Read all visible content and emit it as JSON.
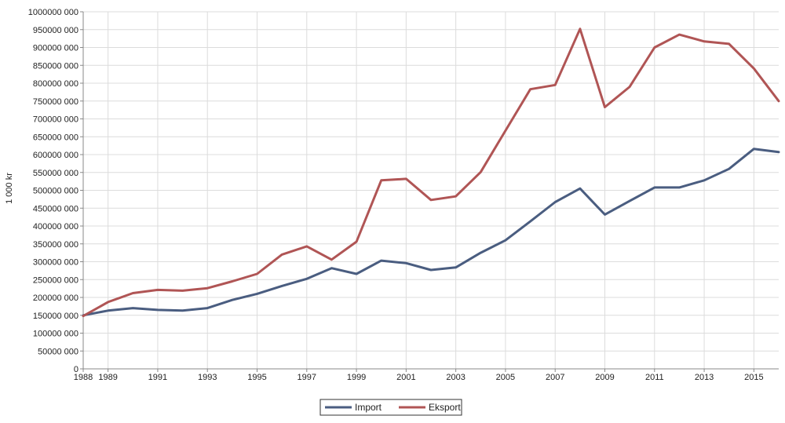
{
  "chart_data": {
    "type": "line",
    "ylabel": "1 000 kr",
    "xlim": [
      1988,
      2016
    ],
    "ylim": [
      0,
      1000000
    ],
    "grid": true,
    "legend_position": "bottom-center",
    "yticks": [
      0,
      50000,
      100000,
      150000,
      200000,
      250000,
      300000,
      350000,
      400000,
      450000,
      500000,
      550000,
      600000,
      650000,
      700000,
      750000,
      800000,
      850000,
      900000,
      950000,
      1000000
    ],
    "ytick_labels": [
      "0",
      "50000 000",
      "100000 000",
      "150000 000",
      "200000 000",
      "250000 000",
      "300000 000",
      "350000 000",
      "400000 000",
      "450000 000",
      "500000 000",
      "550000 000",
      "600000 000",
      "650000 000",
      "700000 000",
      "750000 000",
      "800000 000",
      "850000 000",
      "900000 000",
      "950000 000",
      "1000000 000"
    ],
    "xticks": [
      1988,
      1989,
      1991,
      1993,
      1995,
      1997,
      1999,
      2001,
      2003,
      2005,
      2007,
      2009,
      2011,
      2013,
      2015
    ],
    "xtick_labels": [
      "1988",
      "1989",
      "1991",
      "1993",
      "1995",
      "1997",
      "1999",
      "2001",
      "2003",
      "2005",
      "2007",
      "2009",
      "2011",
      "2013",
      "2015"
    ],
    "x": [
      1988,
      1989,
      1990,
      1991,
      1992,
      1993,
      1994,
      1995,
      1996,
      1997,
      1998,
      1999,
      2000,
      2001,
      2002,
      2003,
      2004,
      2005,
      2006,
      2007,
      2008,
      2009,
      2010,
      2011,
      2012,
      2013,
      2014,
      2015,
      2016
    ],
    "series": [
      {
        "name": "Import",
        "color": "#4a5d80",
        "values": [
          150000,
          163000,
          170000,
          165000,
          163000,
          170000,
          193000,
          210000,
          232000,
          252000,
          282000,
          266000,
          303000,
          296000,
          277000,
          284000,
          325000,
          360000,
          413000,
          467000,
          505000,
          432000,
          470000,
          508000,
          508000,
          528000,
          560000,
          616000,
          607000
        ]
      },
      {
        "name": "Eksport",
        "color": "#b05555",
        "values": [
          148000,
          187000,
          212000,
          221000,
          219000,
          226000,
          245000,
          266000,
          320000,
          343000,
          306000,
          356000,
          528000,
          532000,
          473000,
          483000,
          551000,
          667000,
          783000,
          795000,
          952000,
          733000,
          790000,
          900000,
          936000,
          917000,
          910000,
          841000,
          750000
        ]
      }
    ]
  }
}
